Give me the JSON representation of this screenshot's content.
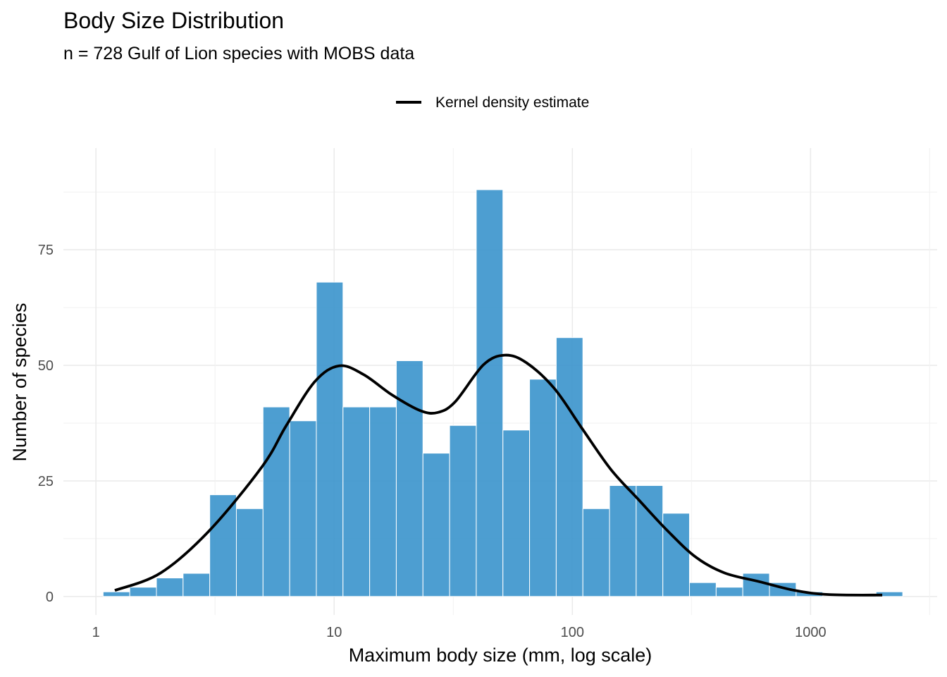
{
  "chart_data": {
    "type": "bar",
    "subtype": "histogram-with-density",
    "title": "Body Size Distribution",
    "subtitle": "n = 728 Gulf of Lion species with MOBS data",
    "xlabel": "Maximum body size (mm, log scale)",
    "ylabel": "Number of species",
    "xscale": "log10",
    "xlim": [
      0.73,
      3400
    ],
    "ylim": [
      -4,
      97
    ],
    "grid": true,
    "legend": {
      "placement": "top",
      "entries": [
        {
          "label": "Kernel density estimate",
          "type": "line",
          "color": "#000000"
        }
      ]
    },
    "x_ticks": [
      {
        "value": 1,
        "label": "1"
      },
      {
        "value": 10,
        "label": "10"
      },
      {
        "value": 100,
        "label": "100"
      },
      {
        "value": 1000,
        "label": "1000"
      }
    ],
    "y_ticks": [
      {
        "value": 0,
        "label": "0"
      },
      {
        "value": 25,
        "label": "25"
      },
      {
        "value": 50,
        "label": "50"
      },
      {
        "value": 75,
        "label": "75"
      }
    ],
    "bar_color": "#3a93cc",
    "bins_log10": {
      "start": 0.03,
      "width": 0.1119
    },
    "bars": [
      {
        "bin": 0,
        "count": 1
      },
      {
        "bin": 1,
        "count": 2
      },
      {
        "bin": 2,
        "count": 4
      },
      {
        "bin": 3,
        "count": 5
      },
      {
        "bin": 4,
        "count": 22
      },
      {
        "bin": 5,
        "count": 19
      },
      {
        "bin": 6,
        "count": 41
      },
      {
        "bin": 7,
        "count": 38
      },
      {
        "bin": 8,
        "count": 68
      },
      {
        "bin": 9,
        "count": 41
      },
      {
        "bin": 10,
        "count": 41
      },
      {
        "bin": 11,
        "count": 51
      },
      {
        "bin": 12,
        "count": 31
      },
      {
        "bin": 13,
        "count": 37
      },
      {
        "bin": 14,
        "count": 88
      },
      {
        "bin": 15,
        "count": 36
      },
      {
        "bin": 16,
        "count": 47
      },
      {
        "bin": 17,
        "count": 56
      },
      {
        "bin": 18,
        "count": 19
      },
      {
        "bin": 19,
        "count": 24
      },
      {
        "bin": 20,
        "count": 24
      },
      {
        "bin": 21,
        "count": 18
      },
      {
        "bin": 22,
        "count": 3
      },
      {
        "bin": 23,
        "count": 2
      },
      {
        "bin": 24,
        "count": 5
      },
      {
        "bin": 25,
        "count": 3
      },
      {
        "bin": 26,
        "count": 1
      },
      {
        "bin": 29,
        "count": 1
      }
    ],
    "kde_series": {
      "name": "Kernel density estimate",
      "color": "#000000",
      "x": [
        1.2,
        1.87,
        3.0,
        5.0,
        6.3,
        8.3,
        10.5,
        13.3,
        17.5,
        23.0,
        27.2,
        32.2,
        42.3,
        52.0,
        64.0,
        84.0,
        110,
        145,
        190,
        250,
        330,
        435,
        610,
        860,
        1200,
        2000
      ],
      "y": [
        1.3,
        5.1,
        14.3,
        28.2,
        37.0,
        46.5,
        49.9,
        48.0,
        43.6,
        40.2,
        39.8,
        42.1,
        50.1,
        52.2,
        50.6,
        45.0,
        36.3,
        27.5,
        20.9,
        14.3,
        8.5,
        5.1,
        3.2,
        1.3,
        0.4,
        0.3
      ]
    }
  }
}
